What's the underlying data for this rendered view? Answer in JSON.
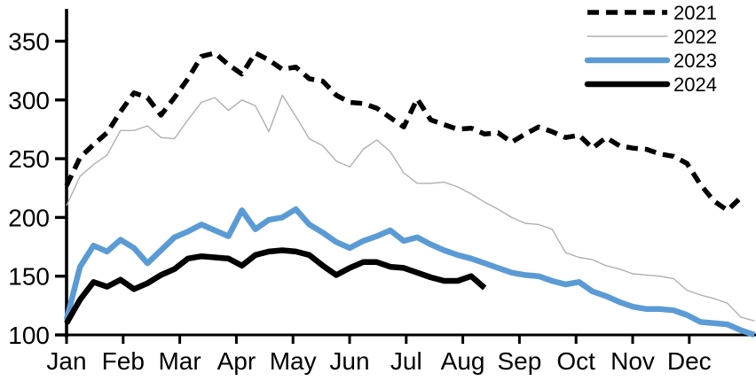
{
  "figure": {
    "background": "#ffffff",
    "accent_blue": "#5b9bd5",
    "line_gray": "#b0b0b0",
    "line_black": "#000000"
  },
  "chart_data": {
    "type": "line",
    "title": "",
    "x_axis": {
      "tick_labels": [
        "Jan",
        "Feb",
        "Mar",
        "Apr",
        "May",
        "Jun",
        "Jul",
        "Aug",
        "Sep",
        "Oct",
        "Nov",
        "Dec"
      ],
      "note": "weekly data points across one year"
    },
    "y_axis": {
      "ticks": [
        100,
        150,
        200,
        250,
        300,
        350
      ],
      "range": [
        100,
        362
      ]
    },
    "legend": {
      "position": "top-right",
      "entries": [
        "2021",
        "2022",
        "2023",
        "2024"
      ]
    },
    "series": [
      {
        "name": "2022",
        "color": "#b0b0b0",
        "style": "solid",
        "stroke_width": 1.4,
        "values": [
          210,
          235,
          245,
          253,
          274,
          274,
          278,
          268,
          267,
          283,
          298,
          302,
          291,
          300,
          295,
          273,
          304,
          286,
          267,
          261,
          248,
          243,
          258,
          266,
          256,
          238,
          229,
          229,
          230,
          226,
          220,
          213,
          207,
          200,
          195,
          194,
          190,
          170,
          166,
          164,
          159,
          156,
          152,
          151,
          150,
          148,
          138,
          134,
          131,
          127,
          115,
          112
        ]
      },
      {
        "name": "2021",
        "color": "#000000",
        "style": "dashed",
        "stroke_width": 5.5,
        "values": [
          227,
          251,
          262,
          272,
          290,
          306,
          302,
          287,
          302,
          318,
          337,
          340,
          330,
          322,
          340,
          334,
          326,
          328,
          318,
          316,
          304,
          298,
          297,
          293,
          285,
          277,
          301,
          283,
          279,
          275,
          276,
          271,
          272,
          264,
          271,
          277,
          273,
          268,
          270,
          259,
          268,
          261,
          259,
          258,
          254,
          252,
          246,
          228,
          214,
          206,
          217
        ]
      },
      {
        "name": "2023",
        "color": "#5b9bd5",
        "style": "solid",
        "stroke_width": 6.5,
        "values": [
          113,
          158,
          176,
          171,
          181,
          174,
          161,
          172,
          183,
          188,
          194,
          189,
          184,
          206,
          190,
          198,
          200,
          207,
          194,
          187,
          179,
          174,
          180,
          184,
          189,
          180,
          183,
          177,
          172,
          168,
          165,
          161,
          157,
          153,
          151,
          150,
          146,
          143,
          145,
          137,
          133,
          128,
          124,
          122,
          122,
          121,
          117,
          111,
          110,
          109,
          104,
          100
        ]
      },
      {
        "name": "2024",
        "color": "#000000",
        "style": "solid",
        "stroke_width": 6.5,
        "values": [
          110,
          130,
          145,
          141,
          147,
          139,
          144,
          151,
          156,
          165,
          167,
          166,
          165,
          159,
          168,
          171,
          172,
          171,
          168,
          159,
          151,
          157,
          162,
          162,
          158,
          157,
          153,
          149,
          146,
          146,
          150,
          140
        ]
      }
    ]
  }
}
